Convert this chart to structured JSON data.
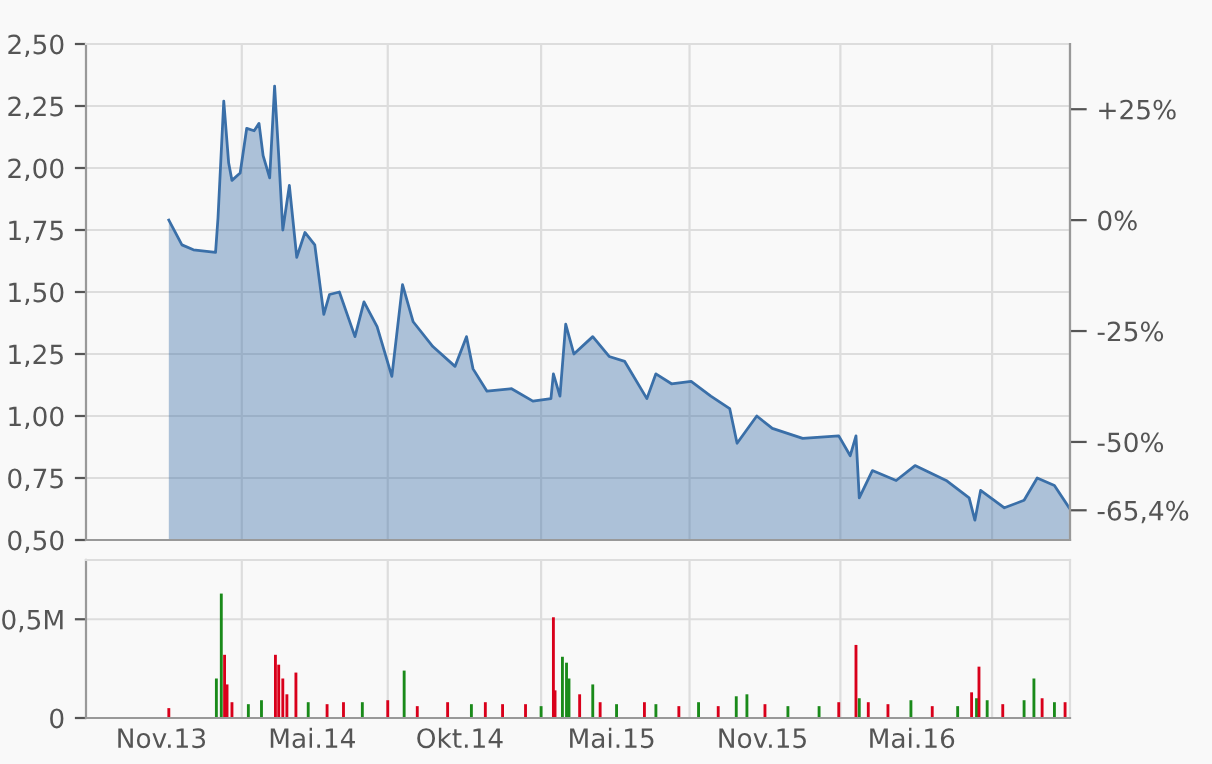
{
  "chart_data": [
    {
      "type": "area",
      "grid": true,
      "tick_labels": "y",
      "xlim": [
        "2013-08-01",
        "2016-11-13"
      ],
      "xticks": [
        {
          "value": "2014-02-07",
          "label": null
        },
        {
          "value": "2014-08-04",
          "label": null
        },
        {
          "value": "2015-02-07",
          "label": null
        },
        {
          "value": "2015-08-07",
          "label": null
        },
        {
          "value": "2016-02-07",
          "label": null
        },
        {
          "value": "2016-08-10",
          "label": null
        }
      ],
      "ylim": [
        0.5,
        2.5
      ],
      "yticks": [
        {
          "value": 0.5,
          "label": "0,50"
        },
        {
          "value": 0.75,
          "label": "0,75"
        },
        {
          "value": 1.0,
          "label": "1,00"
        },
        {
          "value": 1.25,
          "label": "1,25"
        },
        {
          "value": 1.5,
          "label": "1,50"
        },
        {
          "value": 1.75,
          "label": "1,75"
        },
        {
          "value": 2.0,
          "label": "2,00"
        },
        {
          "value": 2.25,
          "label": "2,25"
        },
        {
          "value": 2.5,
          "label": "2,50"
        }
      ],
      "y2lim": [
        -72.1,
        39.7
      ],
      "y2ticks": [
        {
          "value": 25,
          "label": "+25%"
        },
        {
          "value": 0,
          "label": "0%"
        },
        {
          "value": -25,
          "label": "-25%"
        },
        {
          "value": -50,
          "label": "-50%"
        },
        {
          "value": -65.4,
          "label": "-65,4%"
        }
      ],
      "series": [
        {
          "color": "#3a6fa8",
          "x": [
            "2013-11-10",
            "2013-11-26",
            "2013-12-10",
            "2014-01-06",
            "2014-01-09",
            "2014-01-16",
            "2014-01-22",
            "2014-01-26",
            "2014-02-05",
            "2014-02-13",
            "2014-02-22",
            "2014-02-28",
            "2014-03-05",
            "2014-03-13",
            "2014-03-19",
            "2014-03-24",
            "2014-03-29",
            "2014-04-06",
            "2014-04-15",
            "2014-04-25",
            "2014-05-07",
            "2014-05-18",
            "2014-05-25",
            "2014-06-06",
            "2014-06-25",
            "2014-07-06",
            "2014-07-22",
            "2014-08-09",
            "2014-08-22",
            "2014-09-04",
            "2014-09-28",
            "2014-10-25",
            "2014-11-08",
            "2014-11-16",
            "2014-12-03",
            "2015-01-02",
            "2015-01-28",
            "2015-02-19",
            "2015-02-22",
            "2015-03-02",
            "2015-03-09",
            "2015-03-19",
            "2015-04-11",
            "2015-05-01",
            "2015-05-20",
            "2015-06-16",
            "2015-06-27",
            "2015-07-16",
            "2015-08-09",
            "2015-09-02",
            "2015-09-25",
            "2015-10-04",
            "2015-10-28",
            "2015-11-16",
            "2015-12-23",
            "2016-02-05",
            "2016-02-19",
            "2016-02-26",
            "2016-03-01",
            "2016-03-17",
            "2016-04-15",
            "2016-05-08",
            "2016-06-15",
            "2016-07-13",
            "2016-07-20",
            "2016-07-27",
            "2016-08-25",
            "2016-09-18",
            "2016-10-04",
            "2016-10-25",
            "2016-11-12"
          ],
          "values": [
            1.79,
            1.69,
            1.67,
            1.66,
            1.8,
            2.27,
            2.02,
            1.95,
            1.98,
            2.16,
            2.15,
            2.18,
            2.05,
            1.96,
            2.33,
            2.05,
            1.75,
            1.93,
            1.64,
            1.74,
            1.69,
            1.41,
            1.49,
            1.5,
            1.32,
            1.46,
            1.36,
            1.16,
            1.53,
            1.38,
            1.28,
            1.2,
            1.32,
            1.19,
            1.1,
            1.11,
            1.06,
            1.07,
            1.17,
            1.08,
            1.37,
            1.25,
            1.32,
            1.24,
            1.22,
            1.07,
            1.17,
            1.13,
            1.14,
            1.08,
            1.03,
            0.89,
            1.0,
            0.95,
            0.91,
            0.92,
            0.84,
            0.92,
            0.67,
            0.78,
            0.74,
            0.8,
            0.74,
            0.67,
            0.58,
            0.7,
            0.63,
            0.66,
            0.75,
            0.72,
            0.63
          ]
        }
      ]
    },
    {
      "type": "bar",
      "grid": true,
      "xlim": [
        "2013-08-01",
        "2016-11-13"
      ],
      "xticks": [
        {
          "value": "2013-11-01",
          "label": "Nov.13"
        },
        {
          "value": "2014-05-04",
          "label": "Mai.14"
        },
        {
          "value": "2014-10-31",
          "label": "Okt.14"
        },
        {
          "value": "2015-05-04",
          "label": "Mai.15"
        },
        {
          "value": "2015-11-04",
          "label": "Nov.15"
        },
        {
          "value": "2016-05-04",
          "label": "Mai.16"
        },
        {
          "value": "2014-02-07",
          "label": null
        },
        {
          "value": "2014-08-04",
          "label": null
        },
        {
          "value": "2015-02-07",
          "label": null
        },
        {
          "value": "2015-08-07",
          "label": null
        },
        {
          "value": "2016-02-07",
          "label": null
        },
        {
          "value": "2016-08-10",
          "label": null
        }
      ],
      "ylim": [
        0,
        0.8
      ],
      "yticks": [
        {
          "value": 0,
          "label": "0"
        },
        {
          "value": 0.5,
          "label": "0,5M"
        }
      ],
      "x": [
        "2013-11-10",
        "2014-01-07",
        "2014-01-13",
        "2014-01-17",
        "2014-01-20",
        "2014-01-26",
        "2014-02-15",
        "2014-03-03",
        "2014-03-20",
        "2014-03-24",
        "2014-03-29",
        "2014-04-03",
        "2014-04-14",
        "2014-04-29",
        "2014-05-22",
        "2014-06-11",
        "2014-07-04",
        "2014-08-04",
        "2014-08-24",
        "2014-09-09",
        "2014-10-16",
        "2014-11-14",
        "2014-12-01",
        "2014-12-22",
        "2015-01-19",
        "2015-02-07",
        "2015-02-22",
        "2015-02-24",
        "2015-03-05",
        "2015-03-10",
        "2015-03-13",
        "2015-03-26",
        "2015-04-11",
        "2015-04-20",
        "2015-05-10",
        "2015-06-13",
        "2015-06-27",
        "2015-07-25",
        "2015-08-18",
        "2015-09-11",
        "2015-10-03",
        "2015-10-16",
        "2015-11-07",
        "2015-12-05",
        "2016-01-12",
        "2016-02-05",
        "2016-02-26",
        "2016-03-01",
        "2016-03-12",
        "2016-04-05",
        "2016-05-03",
        "2016-05-29",
        "2016-06-29",
        "2016-07-16",
        "2016-07-22",
        "2016-07-25",
        "2016-08-04",
        "2016-08-23",
        "2016-09-18",
        "2016-09-30",
        "2016-10-10",
        "2016-10-25",
        "2016-11-07"
      ],
      "values": [
        0.05,
        0.2,
        0.63,
        0.32,
        0.17,
        0.08,
        0.07,
        0.09,
        0.32,
        0.27,
        0.2,
        0.12,
        0.23,
        0.08,
        0.07,
        0.08,
        0.08,
        0.09,
        0.24,
        0.06,
        0.08,
        0.07,
        0.08,
        0.07,
        0.07,
        0.06,
        0.51,
        0.14,
        0.31,
        0.28,
        0.2,
        0.12,
        0.17,
        0.08,
        0.07,
        0.08,
        0.07,
        0.06,
        0.08,
        0.06,
        0.11,
        0.12,
        0.07,
        0.06,
        0.06,
        0.08,
        0.37,
        0.1,
        0.08,
        0.07,
        0.09,
        0.06,
        0.06,
        0.13,
        0.1,
        0.26,
        0.09,
        0.07,
        0.09,
        0.2,
        0.1,
        0.08,
        0.08
      ],
      "colors": [
        "#d9001b",
        "#1a8a1a",
        "#1a8a1a",
        "#d9001b",
        "#d9001b",
        "#d9001b",
        "#1a8a1a",
        "#1a8a1a",
        "#d9001b",
        "#d9001b",
        "#d9001b",
        "#d9001b",
        "#d9001b",
        "#1a8a1a",
        "#d9001b",
        "#d9001b",
        "#1a8a1a",
        "#d9001b",
        "#1a8a1a",
        "#d9001b",
        "#d9001b",
        "#1a8a1a",
        "#d9001b",
        "#d9001b",
        "#d9001b",
        "#1a8a1a",
        "#d9001b",
        "#d9001b",
        "#1a8a1a",
        "#1a8a1a",
        "#1a8a1a",
        "#d9001b",
        "#1a8a1a",
        "#d9001b",
        "#1a8a1a",
        "#d9001b",
        "#1a8a1a",
        "#d9001b",
        "#1a8a1a",
        "#d9001b",
        "#1a8a1a",
        "#1a8a1a",
        "#d9001b",
        "#1a8a1a",
        "#1a8a1a",
        "#d9001b",
        "#d9001b",
        "#1a8a1a",
        "#d9001b",
        "#d9001b",
        "#1a8a1a",
        "#d9001b",
        "#1a8a1a",
        "#d9001b",
        "#1a8a1a",
        "#d9001b",
        "#1a8a1a",
        "#d9001b",
        "#1a8a1a",
        "#1a8a1a",
        "#d9001b",
        "#1a8a1a",
        "#d9001b"
      ]
    }
  ]
}
